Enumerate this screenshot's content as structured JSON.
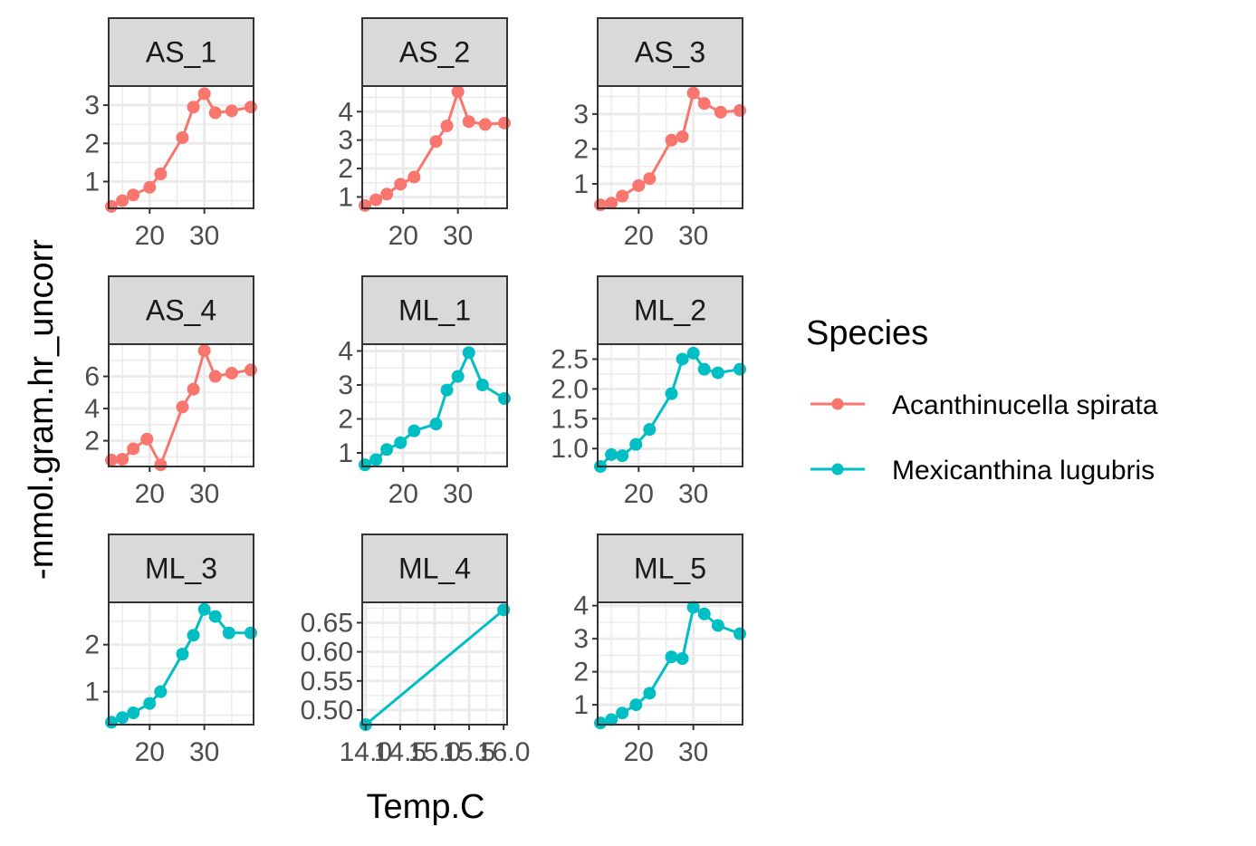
{
  "chart_data": {
    "type": "line",
    "layout": "facet_wrap",
    "xlabel": "Temp.C",
    "ylabel": "-mmol.gram.hr_uncorr",
    "grid": true,
    "legend": {
      "title": "Species",
      "placement": "right",
      "entries": [
        {
          "name": "Acanthinucella spirata",
          "color": "#F8766D"
        },
        {
          "name": "Mexicanthina lugubris",
          "color": "#00BFC4"
        }
      ]
    },
    "panels": [
      {
        "label": "AS_1",
        "species": "Acanthinucella spirata",
        "xlim": [
          12.5,
          39
        ],
        "ylim": [
          0.3,
          3.5
        ],
        "xticks": [
          20,
          30
        ],
        "xtick_labels": [
          "20",
          "30"
        ],
        "yticks": [
          1,
          2,
          3
        ],
        "ytick_labels": [
          "1",
          "2",
          "3"
        ],
        "x": [
          13,
          15,
          17,
          20,
          22,
          26,
          28,
          30,
          32,
          35,
          38.5
        ],
        "y": [
          0.35,
          0.5,
          0.65,
          0.85,
          1.2,
          2.15,
          2.95,
          3.3,
          2.8,
          2.85,
          2.95
        ]
      },
      {
        "label": "AS_2",
        "species": "Acanthinucella spirata",
        "xlim": [
          12.5,
          39
        ],
        "ylim": [
          0.6,
          4.9
        ],
        "xticks": [
          20,
          30
        ],
        "xtick_labels": [
          "20",
          "30"
        ],
        "yticks": [
          1,
          2,
          3,
          4
        ],
        "ytick_labels": [
          "1",
          "2",
          "3",
          "4"
        ],
        "x": [
          13,
          15,
          17,
          19.5,
          22,
          26,
          28,
          30,
          32,
          35,
          38.5
        ],
        "y": [
          0.7,
          0.9,
          1.1,
          1.45,
          1.7,
          2.95,
          3.5,
          4.7,
          3.65,
          3.55,
          3.6
        ]
      },
      {
        "label": "AS_3",
        "species": "Acanthinucella spirata",
        "xlim": [
          12.5,
          39
        ],
        "ylim": [
          0.3,
          3.8
        ],
        "xticks": [
          20,
          30
        ],
        "xtick_labels": [
          "20",
          "30"
        ],
        "yticks": [
          1,
          2,
          3
        ],
        "ytick_labels": [
          "1",
          "2",
          "3"
        ],
        "x": [
          13,
          15,
          17,
          20,
          22,
          26,
          28,
          30,
          32,
          35,
          38.5
        ],
        "y": [
          0.4,
          0.45,
          0.65,
          0.95,
          1.15,
          2.25,
          2.35,
          3.6,
          3.3,
          3.05,
          3.1
        ]
      },
      {
        "label": "AS_4",
        "species": "Acanthinucella spirata",
        "xlim": [
          12.5,
          39
        ],
        "ylim": [
          0.4,
          8.0
        ],
        "xticks": [
          20,
          30
        ],
        "xtick_labels": [
          "20",
          "30"
        ],
        "yticks": [
          2,
          4,
          6
        ],
        "ytick_labels": [
          "2",
          "4",
          "6"
        ],
        "x": [
          13,
          15,
          17,
          19.5,
          22,
          26,
          28,
          30,
          32,
          35,
          38.5
        ],
        "y": [
          0.8,
          0.85,
          1.5,
          2.1,
          0.5,
          4.1,
          5.2,
          7.6,
          6.0,
          6.2,
          6.4
        ]
      },
      {
        "label": "ML_1",
        "species": "Mexicanthina lugubris",
        "xlim": [
          12.5,
          39
        ],
        "ylim": [
          0.6,
          4.2
        ],
        "xticks": [
          20,
          30
        ],
        "xtick_labels": [
          "20",
          "30"
        ],
        "yticks": [
          1,
          2,
          3,
          4
        ],
        "ytick_labels": [
          "1",
          "2",
          "3",
          "4"
        ],
        "x": [
          13,
          15,
          17,
          19.5,
          22,
          26,
          28,
          30,
          32,
          34.5,
          38.5
        ],
        "y": [
          0.65,
          0.8,
          1.1,
          1.3,
          1.65,
          1.85,
          2.85,
          3.25,
          3.95,
          3.0,
          2.6
        ]
      },
      {
        "label": "ML_2",
        "species": "Mexicanthina lugubris",
        "xlim": [
          12.5,
          39
        ],
        "ylim": [
          0.7,
          2.75
        ],
        "xticks": [
          20,
          30
        ],
        "xtick_labels": [
          "20",
          "30"
        ],
        "yticks": [
          1.0,
          1.5,
          2.0,
          2.5
        ],
        "ytick_labels": [
          "1.0",
          "1.5",
          "2.0",
          "2.5"
        ],
        "x": [
          13,
          15,
          17,
          19.5,
          22,
          26,
          28,
          30,
          32,
          34.5,
          38.5
        ],
        "y": [
          0.7,
          0.9,
          0.88,
          1.07,
          1.32,
          1.92,
          2.5,
          2.6,
          2.33,
          2.27,
          2.33
        ]
      },
      {
        "label": "ML_3",
        "species": "Mexicanthina lugubris",
        "xlim": [
          12.5,
          39
        ],
        "ylim": [
          0.3,
          2.9
        ],
        "xticks": [
          20,
          30
        ],
        "xtick_labels": [
          "20",
          "30"
        ],
        "yticks": [
          1,
          2
        ],
        "ytick_labels": [
          "1",
          "2"
        ],
        "x": [
          13,
          15,
          17,
          20,
          22,
          26,
          28,
          30,
          32,
          34.5,
          38.5
        ],
        "y": [
          0.35,
          0.45,
          0.55,
          0.75,
          1.0,
          1.8,
          2.2,
          2.75,
          2.6,
          2.25,
          2.25
        ]
      },
      {
        "label": "ML_4",
        "species": "Mexicanthina lugubris",
        "xlim": [
          13.95,
          16.05
        ],
        "ylim": [
          0.475,
          0.685
        ],
        "xticks": [
          14.0,
          14.5,
          15.0,
          15.5,
          16.0
        ],
        "xtick_labels": [
          "14.0",
          "14.5",
          "15.0",
          "15.5",
          "16.0"
        ],
        "yticks": [
          0.5,
          0.55,
          0.6,
          0.65
        ],
        "ytick_labels": [
          "0.50",
          "0.55",
          "0.60",
          "0.65"
        ],
        "x": [
          14.0,
          16.0
        ],
        "y": [
          0.475,
          0.672
        ]
      },
      {
        "label": "ML_5",
        "species": "Mexicanthina lugubris",
        "xlim": [
          12.5,
          39
        ],
        "ylim": [
          0.4,
          4.1
        ],
        "xticks": [
          20,
          30
        ],
        "xtick_labels": [
          "20",
          "30"
        ],
        "yticks": [
          1,
          2,
          3,
          4
        ],
        "ytick_labels": [
          "1",
          "2",
          "3",
          "4"
        ],
        "x": [
          13,
          15,
          17,
          19.5,
          22,
          26,
          28,
          30,
          32,
          34.5,
          38.5
        ],
        "y": [
          0.45,
          0.55,
          0.75,
          1.0,
          1.35,
          2.45,
          2.4,
          3.95,
          3.75,
          3.4,
          3.15
        ]
      }
    ]
  }
}
